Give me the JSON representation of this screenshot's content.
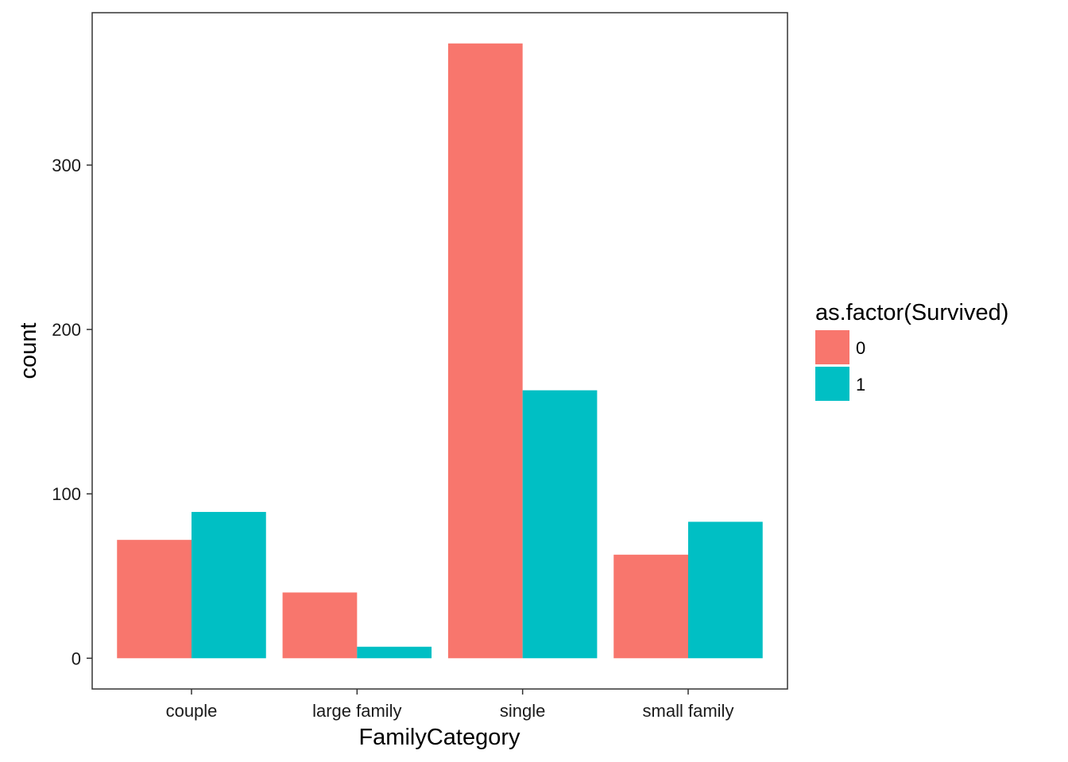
{
  "chart_data": {
    "type": "bar",
    "xlabel": "FamilyCategory",
    "ylabel": "count",
    "categories": [
      "couple",
      "large family",
      "single",
      "small family"
    ],
    "series": [
      {
        "name": "0",
        "values": [
          72,
          40,
          374,
          63
        ],
        "color": "#F8766D"
      },
      {
        "name": "1",
        "values": [
          89,
          7,
          163,
          83
        ],
        "color": "#00BFC4"
      }
    ],
    "yticks": [
      0,
      100,
      200,
      300
    ],
    "ylim": [
      -18.7,
      392.7
    ],
    "legend": {
      "title": "as.factor(Survived)",
      "position": "right"
    },
    "grid": false
  }
}
